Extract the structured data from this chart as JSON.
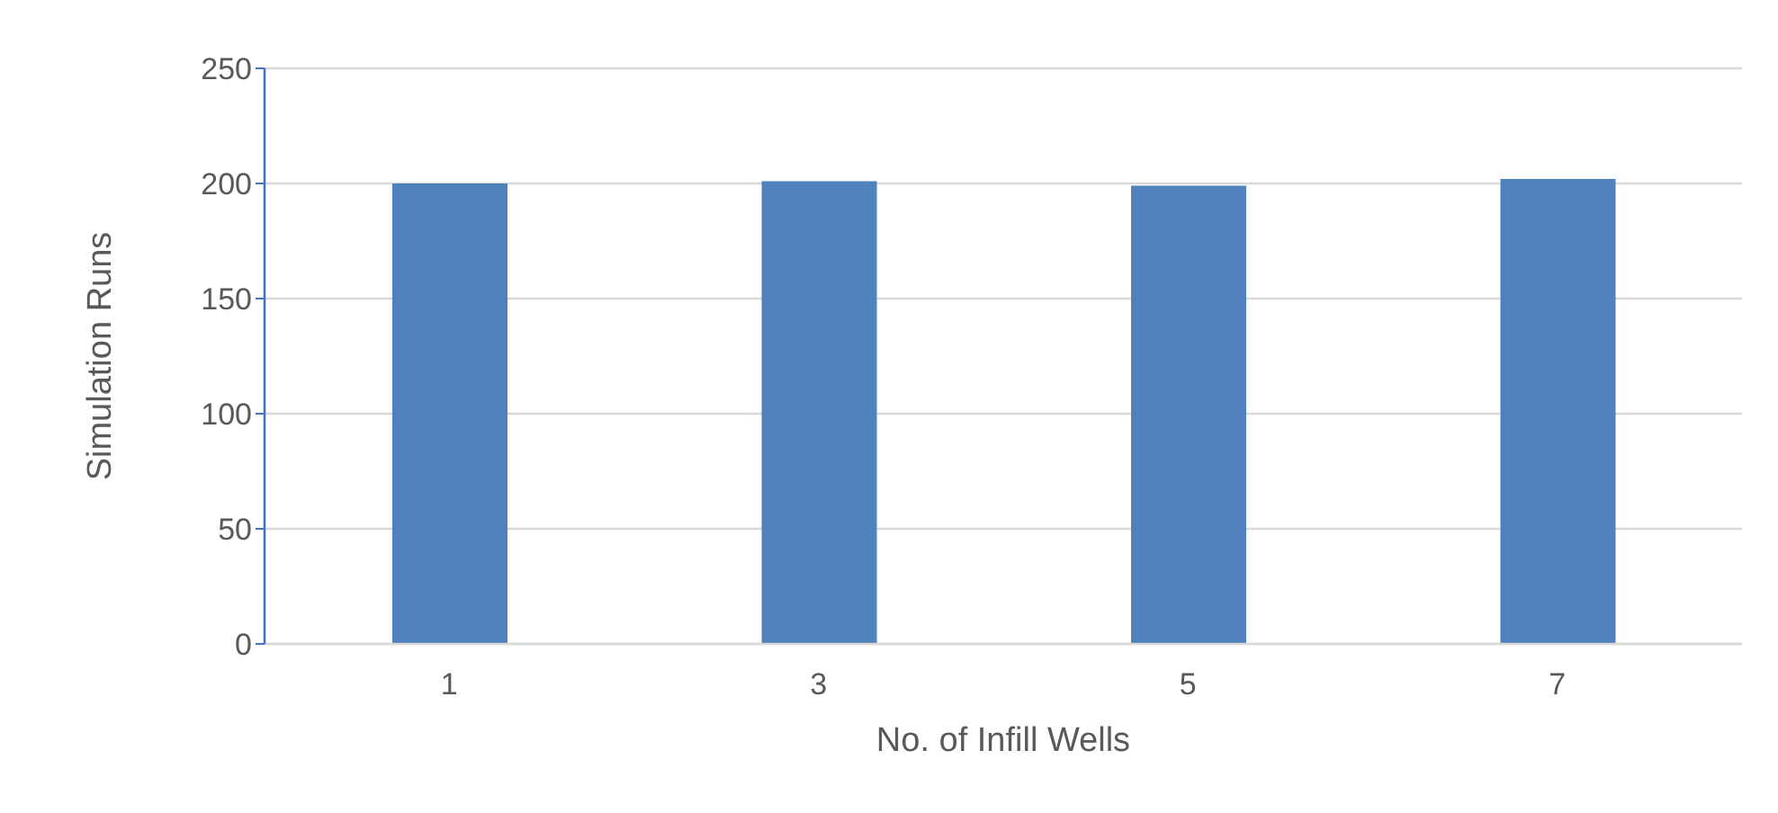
{
  "chart_data": {
    "type": "bar",
    "xlabel": "No. of Infill Wells",
    "ylabel": "Simulation Runs",
    "categories": [
      "1",
      "3",
      "5",
      "7"
    ],
    "values": [
      200,
      201,
      199,
      202
    ],
    "color": "#4f81bd",
    "ylim": [
      0,
      250
    ],
    "yticks": [
      0,
      50,
      100,
      150,
      200,
      250
    ],
    "grid": "y"
  }
}
